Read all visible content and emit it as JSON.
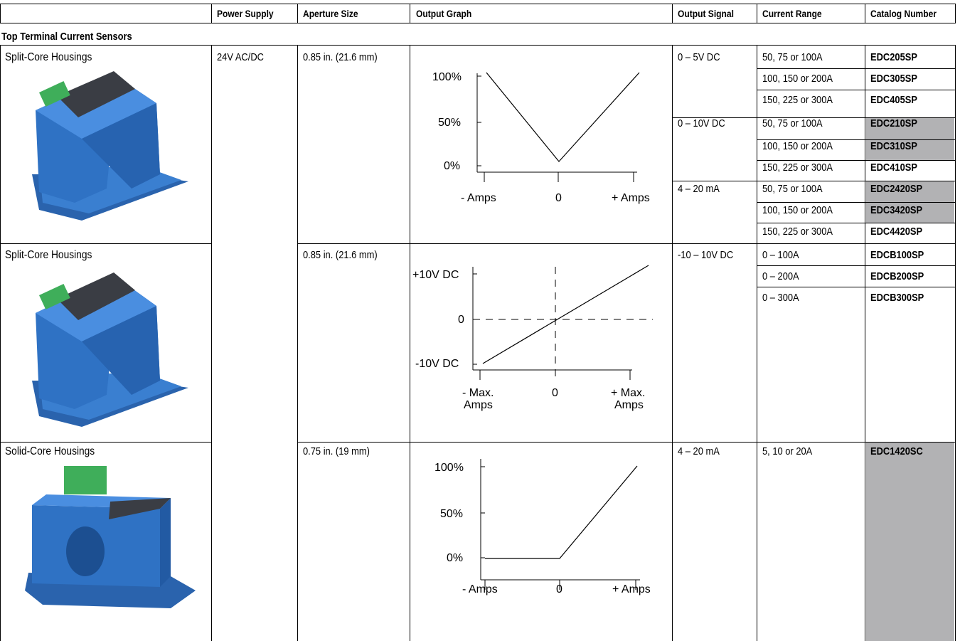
{
  "headers": [
    "",
    "Power Supply",
    "Aperture Size",
    "Output Graph",
    "Output Signal",
    "Current Range",
    "Catalog Number"
  ],
  "section_title": "Top Terminal Current Sensors",
  "power_supply": "24V AC/DC",
  "rows": [
    {
      "product": "Split-Core Housings",
      "aperture": "0.85 in. (21.6 mm)",
      "graph": {
        "y_labels": [
          "100%",
          "50%",
          "0%"
        ],
        "x_labels": [
          "- Amps",
          "0",
          "+ Amps"
        ]
      },
      "signals": [
        {
          "signal": "0 – 5V DC",
          "ranges": [
            {
              "range": "50, 75 or 100A",
              "catalog": "EDC205SP",
              "shaded": false
            },
            {
              "range": "100, 150 or 200A",
              "catalog": "EDC305SP",
              "shaded": false
            },
            {
              "range": "150, 225 or 300A",
              "catalog": "EDC405SP",
              "shaded": false
            }
          ]
        },
        {
          "signal": "0 – 10V DC",
          "ranges": [
            {
              "range": "50, 75 or 100A",
              "catalog": "EDC210SP",
              "shaded": true
            },
            {
              "range": "100, 150 or 200A",
              "catalog": "EDC310SP",
              "shaded": true
            },
            {
              "range": "150, 225 or 300A",
              "catalog": "EDC410SP",
              "shaded": false
            }
          ]
        },
        {
          "signal": "4 – 20 mA",
          "ranges": [
            {
              "range": "50, 75 or 100A",
              "catalog": "EDC2420SP",
              "shaded": true
            },
            {
              "range": "100, 150 or 200A",
              "catalog": "EDC3420SP",
              "shaded": true
            },
            {
              "range": "150, 225 or 300A",
              "catalog": "EDC4420SP",
              "shaded": false
            }
          ]
        }
      ]
    },
    {
      "product": "Split-Core Housings",
      "aperture": "0.85 in. (21.6 mm)",
      "graph": {
        "y_labels": [
          "+10V DC",
          "0",
          "-10V DC"
        ],
        "x_labels": [
          "- Max.",
          "Amps",
          "0",
          "+ Max.",
          "Amps"
        ]
      },
      "signals": [
        {
          "signal": "-10 – 10V DC",
          "ranges": [
            {
              "range": "0 – 100A",
              "catalog": "EDCB100SP",
              "shaded": false
            },
            {
              "range": "0 – 200A",
              "catalog": "EDCB200SP",
              "shaded": false
            },
            {
              "range": "0 – 300A",
              "catalog": "EDCB300SP",
              "shaded": false
            }
          ]
        }
      ]
    },
    {
      "product": "Solid-Core Housings",
      "aperture": "0.75 in. (19 mm)",
      "graph": {
        "y_labels": [
          "100%",
          "50%",
          "0%"
        ],
        "x_labels": [
          "- Amps",
          "0",
          "+ Amps"
        ]
      },
      "signals": [
        {
          "signal": "4 – 20 mA",
          "ranges": [
            {
              "range": "5, 10 or 20A",
              "catalog": "EDC1420SC",
              "shaded": true
            }
          ]
        }
      ]
    }
  ],
  "colors": {
    "shade": "#b2b2b4",
    "sensor_blue": "#2f72c4",
    "terminal_green": "#3fae5a",
    "label_dark": "#3a3d44"
  }
}
